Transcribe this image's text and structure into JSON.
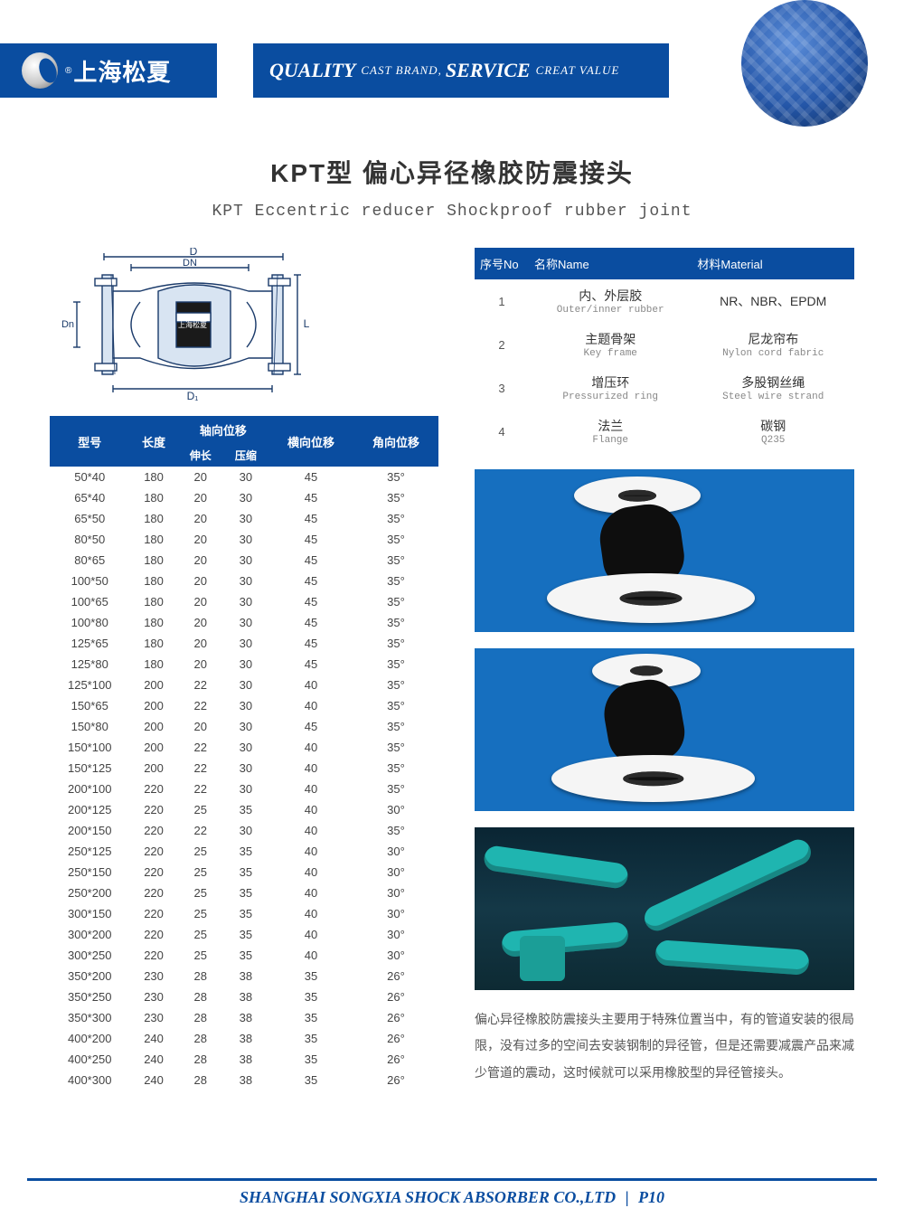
{
  "header": {
    "brand_cn": "上海松夏",
    "reg": "®",
    "slogan_q": "QUALITY",
    "slogan_cast": "CAST BRAND,",
    "slogan_s": "SERVICE",
    "slogan_val": "CREAT VALUE"
  },
  "title_cn": "KPT型 偏心异径橡胶防震接头",
  "title_en": "KPT Eccentric reducer Shockproof rubber joint",
  "diagram": {
    "labels": {
      "D": "D",
      "DN": "DN",
      "Dn": "Dn",
      "D1": "D₁",
      "L": "L",
      "brand": "上海松夏"
    }
  },
  "materials": {
    "head": {
      "no": "序号No",
      "name": "名称Name",
      "mat": "材料Material"
    },
    "rows": [
      {
        "no": "1",
        "name_cn": "内、外层胶",
        "name_en": "Outer/inner rubber",
        "mat_cn": "NR、NBR、EPDM",
        "mat_en": ""
      },
      {
        "no": "2",
        "name_cn": "主题骨架",
        "name_en": "Key frame",
        "mat_cn": "尼龙帘布",
        "mat_en": "Nylon cord fabric"
      },
      {
        "no": "3",
        "name_cn": "增压环",
        "name_en": "Pressurized ring",
        "mat_cn": "多股钢丝绳",
        "mat_en": "Steel wire strand"
      },
      {
        "no": "4",
        "name_cn": "法兰",
        "name_en": "Flange",
        "mat_cn": "碳钢",
        "mat_en": "Q235"
      }
    ]
  },
  "spec": {
    "head": {
      "model": "型号",
      "len": "长度",
      "axial": "轴向位移",
      "lat": "横向位移",
      "ang": "角向位移",
      "ext": "伸长",
      "comp": "压缩"
    },
    "rows": [
      [
        "50*40",
        "180",
        "20",
        "30",
        "45",
        "35°"
      ],
      [
        "65*40",
        "180",
        "20",
        "30",
        "45",
        "35°"
      ],
      [
        "65*50",
        "180",
        "20",
        "30",
        "45",
        "35°"
      ],
      [
        "80*50",
        "180",
        "20",
        "30",
        "45",
        "35°"
      ],
      [
        "80*65",
        "180",
        "20",
        "30",
        "45",
        "35°"
      ],
      [
        "100*50",
        "180",
        "20",
        "30",
        "45",
        "35°"
      ],
      [
        "100*65",
        "180",
        "20",
        "30",
        "45",
        "35°"
      ],
      [
        "100*80",
        "180",
        "20",
        "30",
        "45",
        "35°"
      ],
      [
        "125*65",
        "180",
        "20",
        "30",
        "45",
        "35°"
      ],
      [
        "125*80",
        "180",
        "20",
        "30",
        "45",
        "35°"
      ],
      [
        "125*100",
        "200",
        "22",
        "30",
        "40",
        "35°"
      ],
      [
        "150*65",
        "200",
        "22",
        "30",
        "40",
        "35°"
      ],
      [
        "150*80",
        "200",
        "20",
        "30",
        "45",
        "35°"
      ],
      [
        "150*100",
        "200",
        "22",
        "30",
        "40",
        "35°"
      ],
      [
        "150*125",
        "200",
        "22",
        "30",
        "40",
        "35°"
      ],
      [
        "200*100",
        "220",
        "22",
        "30",
        "40",
        "35°"
      ],
      [
        "200*125",
        "220",
        "25",
        "35",
        "40",
        "30°"
      ],
      [
        "200*150",
        "220",
        "22",
        "30",
        "40",
        "35°"
      ],
      [
        "250*125",
        "220",
        "25",
        "35",
        "40",
        "30°"
      ],
      [
        "250*150",
        "220",
        "25",
        "35",
        "40",
        "30°"
      ],
      [
        "250*200",
        "220",
        "25",
        "35",
        "40",
        "30°"
      ],
      [
        "300*150",
        "220",
        "25",
        "35",
        "40",
        "30°"
      ],
      [
        "300*200",
        "220",
        "25",
        "35",
        "40",
        "30°"
      ],
      [
        "300*250",
        "220",
        "25",
        "35",
        "40",
        "30°"
      ],
      [
        "350*200",
        "230",
        "28",
        "38",
        "35",
        "26°"
      ],
      [
        "350*250",
        "230",
        "28",
        "38",
        "35",
        "26°"
      ],
      [
        "350*300",
        "230",
        "28",
        "38",
        "35",
        "26°"
      ],
      [
        "400*200",
        "240",
        "28",
        "38",
        "35",
        "26°"
      ],
      [
        "400*250",
        "240",
        "28",
        "38",
        "35",
        "26°"
      ],
      [
        "400*300",
        "240",
        "28",
        "38",
        "35",
        "26°"
      ]
    ]
  },
  "description": "偏心异径橡胶防震接头主要用于特殊位置当中，有的管道安装的很局限，没有过多的空间去安装钢制的异径管，但是还需要减震产品来减少管道的震动，这时候就可以采用橡胶型的异径管接头。",
  "footer": {
    "company": "SHANGHAI SONGXIA SHOCK ABSORBER CO.,LTD",
    "page": "P10"
  },
  "colors": {
    "brand": "#0a4da0"
  }
}
